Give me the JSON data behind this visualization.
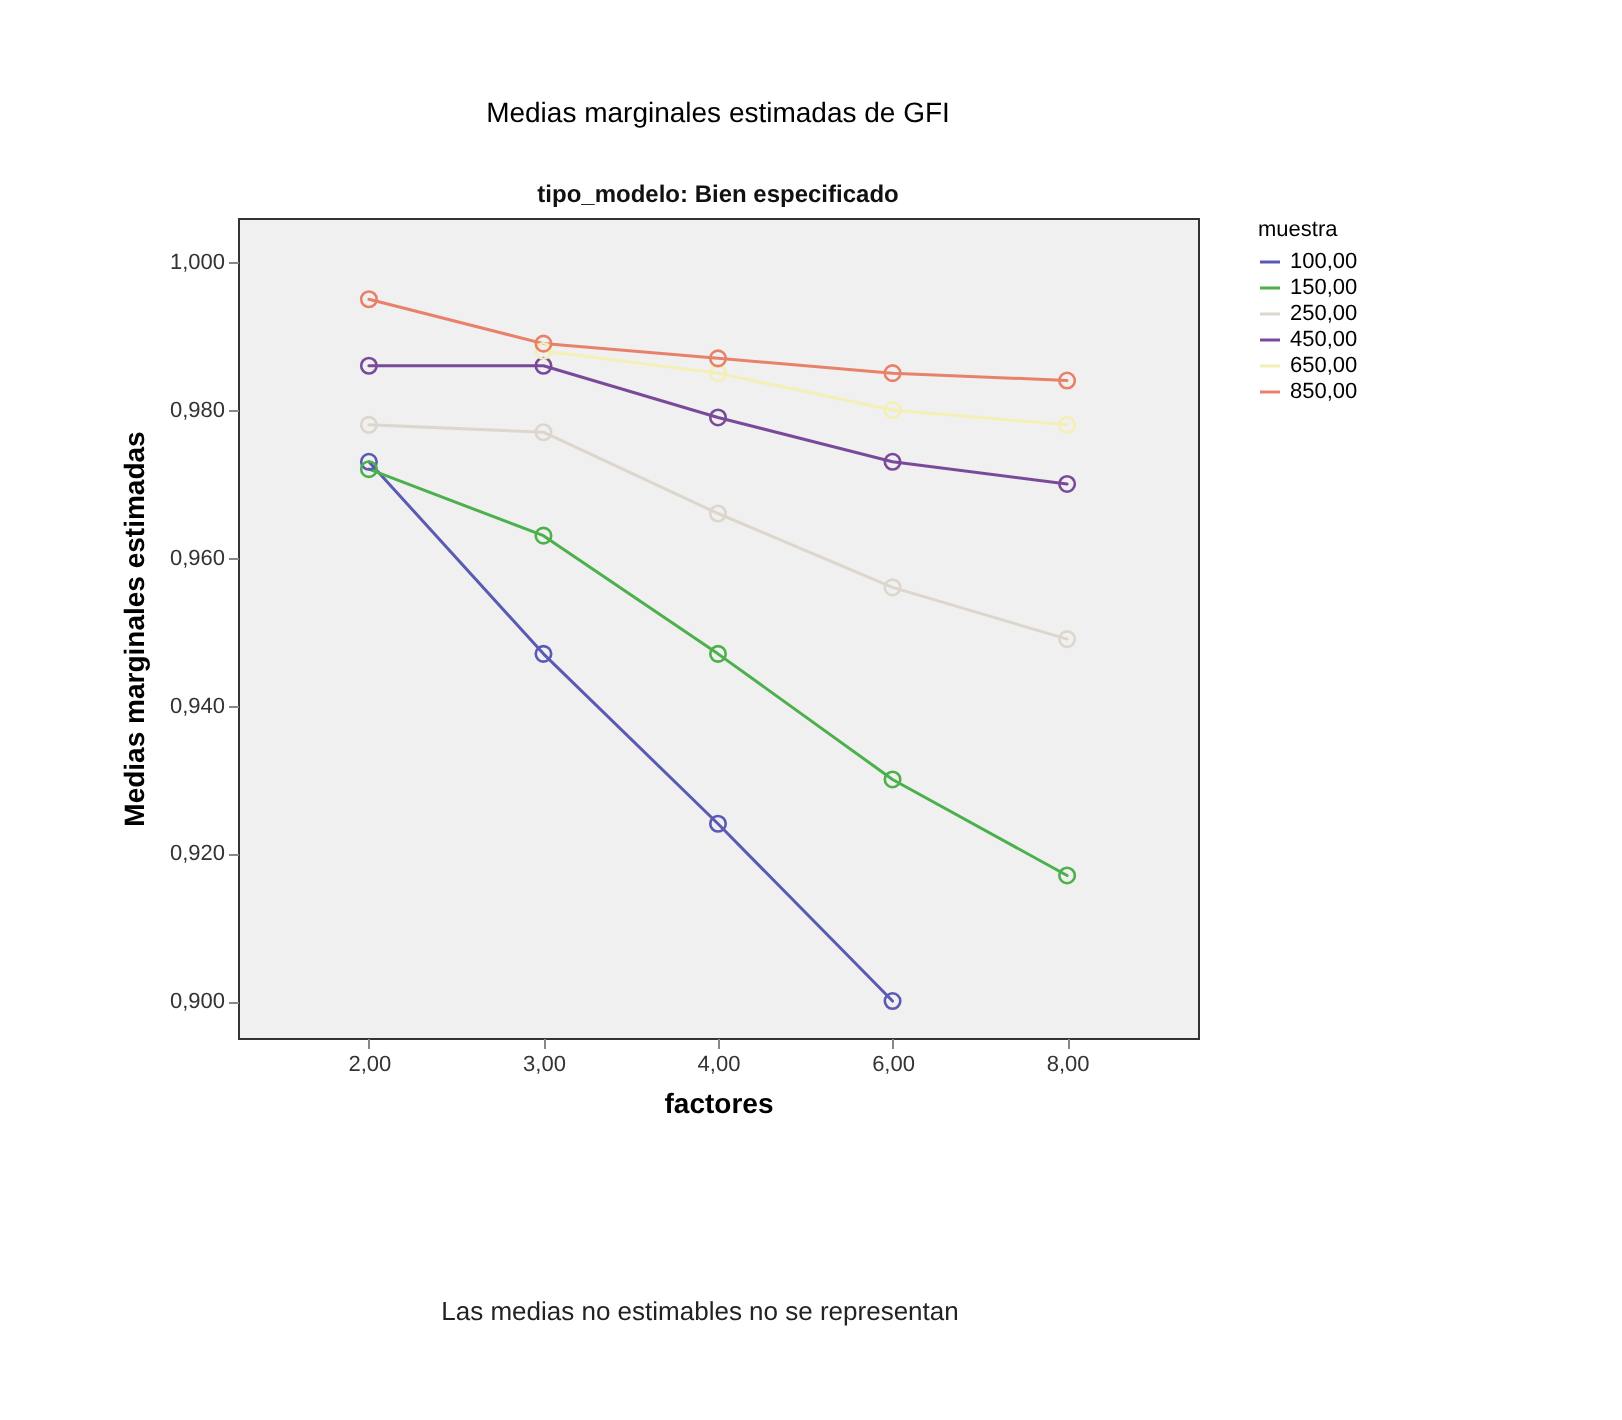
{
  "chart_data": {
    "type": "line",
    "title": "Medias marginales estimadas de GFI",
    "subtitle": "tipo_modelo: Bien especificado",
    "xlabel": "factores",
    "ylabel": "Medias marginales estimadas",
    "legend_title": "muestra",
    "annotations": [
      "Las medias no estimables no se representan"
    ],
    "categories": [
      "2,00",
      "3,00",
      "4,00",
      "6,00",
      "8,00"
    ],
    "series": [
      {
        "name": "100,00",
        "color": "#5a5ab4",
        "values": [
          0.973,
          0.947,
          0.924,
          0.9,
          null
        ]
      },
      {
        "name": "150,00",
        "color": "#4cb04c",
        "values": [
          0.972,
          0.963,
          0.947,
          0.93,
          0.917
        ]
      },
      {
        "name": "250,00",
        "color": "#ddd6cc",
        "values": [
          0.978,
          0.977,
          0.966,
          0.956,
          0.949
        ]
      },
      {
        "name": "450,00",
        "color": "#7a4a9a",
        "values": [
          0.986,
          0.986,
          0.979,
          0.973,
          0.97
        ]
      },
      {
        "name": "650,00",
        "color": "#f4efb4",
        "values": [
          null,
          0.988,
          0.985,
          0.98,
          0.978
        ]
      },
      {
        "name": "850,00",
        "color": "#e8806a",
        "values": [
          0.995,
          0.989,
          0.987,
          0.985,
          0.984
        ]
      }
    ],
    "ylim": [
      0.895,
      1.006
    ],
    "yticks": [
      {
        "value": 0.9,
        "label": "0,900"
      },
      {
        "value": 0.92,
        "label": "0,920"
      },
      {
        "value": 0.94,
        "label": "0,940"
      },
      {
        "value": 0.96,
        "label": "0,960"
      },
      {
        "value": 0.98,
        "label": "0,980"
      },
      {
        "value": 1,
        "label": "1,000"
      }
    ],
    "legend": "top right",
    "marker": "circle",
    "line_style": "solid"
  }
}
